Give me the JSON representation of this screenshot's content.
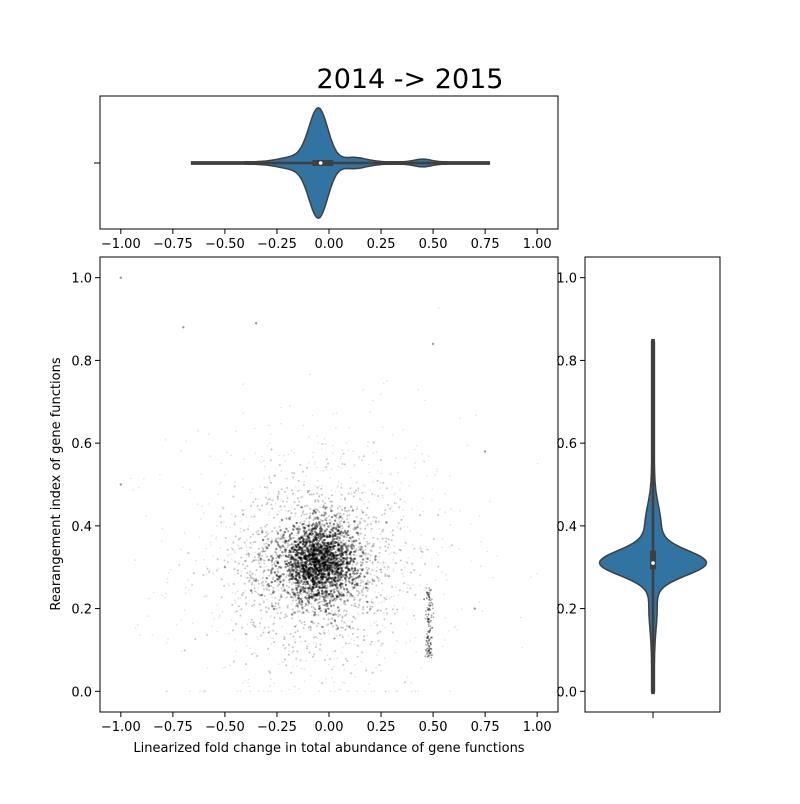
{
  "chart_data": [
    {
      "type": "scatter",
      "panel": "main",
      "title": "2014 -> 2015",
      "xlabel": "Linearized fold change in total abundance of gene functions",
      "ylabel": "Rearangement index of gene functions",
      "xlim": [
        -1.1,
        1.1
      ],
      "ylim": [
        -0.05,
        1.05
      ],
      "xticks": [
        "−1.00",
        "−0.75",
        "−0.50",
        "−0.25",
        "0.00",
        "0.25",
        "0.50",
        "0.75",
        "1.00"
      ],
      "yticks": [
        "0.0",
        "0.2",
        "0.4",
        "0.6",
        "0.8",
        "1.0"
      ],
      "point_color": "#000000",
      "density_center": {
        "x": -0.05,
        "y": 0.31
      },
      "density_spread": {
        "x": 0.09,
        "y": 0.045
      },
      "halo_spread": {
        "x": 0.2,
        "y": 0.1
      },
      "streak_x": 0.48,
      "streak_y": [
        0.08,
        0.25
      ],
      "outliers": [
        {
          "x": -1.0,
          "y": 0.5
        },
        {
          "x": -1.0,
          "y": 1.0
        },
        {
          "x": 0.75,
          "y": 0.58
        },
        {
          "x": -0.35,
          "y": 0.89
        },
        {
          "x": 0.5,
          "y": 0.84
        },
        {
          "x": -0.5,
          "y": 0.3
        },
        {
          "x": 0.7,
          "y": 0.2
        },
        {
          "x": -0.7,
          "y": 0.88
        }
      ],
      "grid": false
    },
    {
      "type": "violin",
      "panel": "top-marginal",
      "orientation": "horizontal",
      "variable": "fold change",
      "xlim": [
        -1.1,
        1.1
      ],
      "xticks": [
        "−1.00",
        "−0.75",
        "−0.50",
        "−0.25",
        "0.00",
        "0.25",
        "0.50",
        "0.75",
        "1.00"
      ],
      "min": -0.66,
      "max": 0.77,
      "q1": -0.08,
      "median": -0.04,
      "q3": 0.02,
      "peak": -0.05,
      "color": "#3274a1"
    },
    {
      "type": "violin",
      "panel": "right-marginal",
      "orientation": "vertical",
      "variable": "rearrangement index",
      "ylim": [
        -0.05,
        1.05
      ],
      "yticks": [
        "0.0",
        "0.2",
        "0.4",
        "0.6",
        "0.8",
        "1.0"
      ],
      "min": -0.005,
      "max": 0.85,
      "q1": 0.295,
      "median": 0.31,
      "q3": 0.34,
      "peak": 0.31,
      "color": "#3274a1"
    }
  ]
}
